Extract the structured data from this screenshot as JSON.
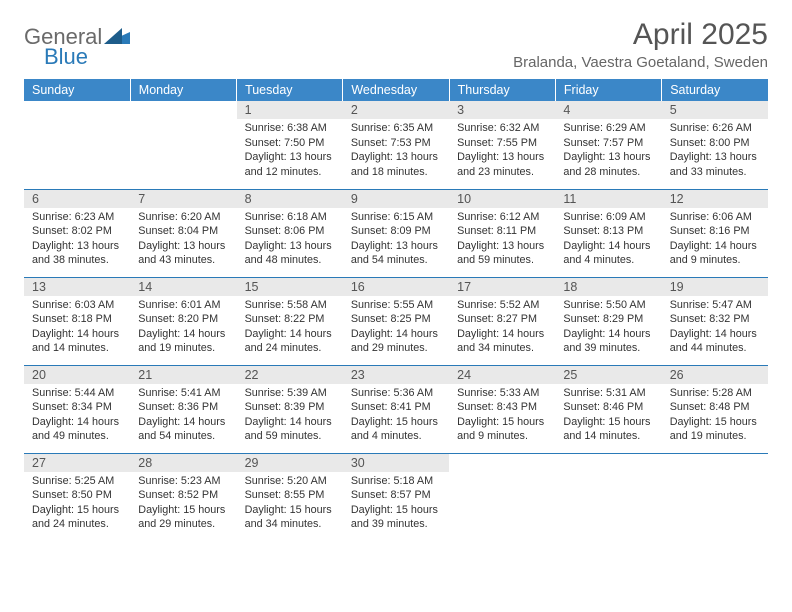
{
  "logo": {
    "text1": "General",
    "text2": "Blue"
  },
  "title": "April 2025",
  "location": "Bralanda, Vaestra Goetaland, Sweden",
  "colors": {
    "header_bg": "#3b87c8",
    "header_text": "#ffffff",
    "daynum_bg": "#e9e9e9",
    "border": "#2a7ab8",
    "body_text": "#333333",
    "title_text": "#555555",
    "logo_gray": "#6a6a6a",
    "logo_blue": "#2a7ab8"
  },
  "weekdays": [
    "Sunday",
    "Monday",
    "Tuesday",
    "Wednesday",
    "Thursday",
    "Friday",
    "Saturday"
  ],
  "weeks": [
    [
      null,
      null,
      {
        "n": "1",
        "sunrise": "6:38 AM",
        "sunset": "7:50 PM",
        "daylight": "13 hours and 12 minutes."
      },
      {
        "n": "2",
        "sunrise": "6:35 AM",
        "sunset": "7:53 PM",
        "daylight": "13 hours and 18 minutes."
      },
      {
        "n": "3",
        "sunrise": "6:32 AM",
        "sunset": "7:55 PM",
        "daylight": "13 hours and 23 minutes."
      },
      {
        "n": "4",
        "sunrise": "6:29 AM",
        "sunset": "7:57 PM",
        "daylight": "13 hours and 28 minutes."
      },
      {
        "n": "5",
        "sunrise": "6:26 AM",
        "sunset": "8:00 PM",
        "daylight": "13 hours and 33 minutes."
      }
    ],
    [
      {
        "n": "6",
        "sunrise": "6:23 AM",
        "sunset": "8:02 PM",
        "daylight": "13 hours and 38 minutes."
      },
      {
        "n": "7",
        "sunrise": "6:20 AM",
        "sunset": "8:04 PM",
        "daylight": "13 hours and 43 minutes."
      },
      {
        "n": "8",
        "sunrise": "6:18 AM",
        "sunset": "8:06 PM",
        "daylight": "13 hours and 48 minutes."
      },
      {
        "n": "9",
        "sunrise": "6:15 AM",
        "sunset": "8:09 PM",
        "daylight": "13 hours and 54 minutes."
      },
      {
        "n": "10",
        "sunrise": "6:12 AM",
        "sunset": "8:11 PM",
        "daylight": "13 hours and 59 minutes."
      },
      {
        "n": "11",
        "sunrise": "6:09 AM",
        "sunset": "8:13 PM",
        "daylight": "14 hours and 4 minutes."
      },
      {
        "n": "12",
        "sunrise": "6:06 AM",
        "sunset": "8:16 PM",
        "daylight": "14 hours and 9 minutes."
      }
    ],
    [
      {
        "n": "13",
        "sunrise": "6:03 AM",
        "sunset": "8:18 PM",
        "daylight": "14 hours and 14 minutes."
      },
      {
        "n": "14",
        "sunrise": "6:01 AM",
        "sunset": "8:20 PM",
        "daylight": "14 hours and 19 minutes."
      },
      {
        "n": "15",
        "sunrise": "5:58 AM",
        "sunset": "8:22 PM",
        "daylight": "14 hours and 24 minutes."
      },
      {
        "n": "16",
        "sunrise": "5:55 AM",
        "sunset": "8:25 PM",
        "daylight": "14 hours and 29 minutes."
      },
      {
        "n": "17",
        "sunrise": "5:52 AM",
        "sunset": "8:27 PM",
        "daylight": "14 hours and 34 minutes."
      },
      {
        "n": "18",
        "sunrise": "5:50 AM",
        "sunset": "8:29 PM",
        "daylight": "14 hours and 39 minutes."
      },
      {
        "n": "19",
        "sunrise": "5:47 AM",
        "sunset": "8:32 PM",
        "daylight": "14 hours and 44 minutes."
      }
    ],
    [
      {
        "n": "20",
        "sunrise": "5:44 AM",
        "sunset": "8:34 PM",
        "daylight": "14 hours and 49 minutes."
      },
      {
        "n": "21",
        "sunrise": "5:41 AM",
        "sunset": "8:36 PM",
        "daylight": "14 hours and 54 minutes."
      },
      {
        "n": "22",
        "sunrise": "5:39 AM",
        "sunset": "8:39 PM",
        "daylight": "14 hours and 59 minutes."
      },
      {
        "n": "23",
        "sunrise": "5:36 AM",
        "sunset": "8:41 PM",
        "daylight": "15 hours and 4 minutes."
      },
      {
        "n": "24",
        "sunrise": "5:33 AM",
        "sunset": "8:43 PM",
        "daylight": "15 hours and 9 minutes."
      },
      {
        "n": "25",
        "sunrise": "5:31 AM",
        "sunset": "8:46 PM",
        "daylight": "15 hours and 14 minutes."
      },
      {
        "n": "26",
        "sunrise": "5:28 AM",
        "sunset": "8:48 PM",
        "daylight": "15 hours and 19 minutes."
      }
    ],
    [
      {
        "n": "27",
        "sunrise": "5:25 AM",
        "sunset": "8:50 PM",
        "daylight": "15 hours and 24 minutes."
      },
      {
        "n": "28",
        "sunrise": "5:23 AM",
        "sunset": "8:52 PM",
        "daylight": "15 hours and 29 minutes."
      },
      {
        "n": "29",
        "sunrise": "5:20 AM",
        "sunset": "8:55 PM",
        "daylight": "15 hours and 34 minutes."
      },
      {
        "n": "30",
        "sunrise": "5:18 AM",
        "sunset": "8:57 PM",
        "daylight": "15 hours and 39 minutes."
      },
      null,
      null,
      null
    ]
  ],
  "labels": {
    "sunrise": "Sunrise:",
    "sunset": "Sunset:",
    "daylight": "Daylight:"
  }
}
